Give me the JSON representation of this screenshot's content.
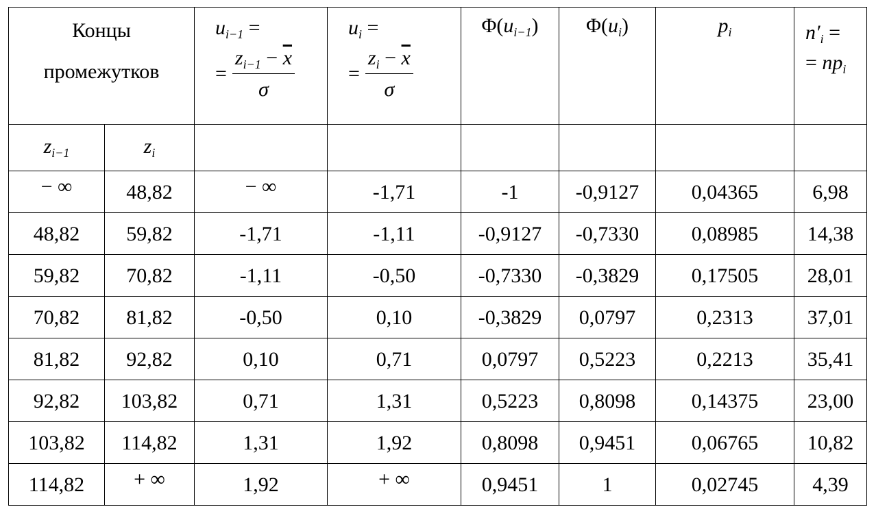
{
  "table": {
    "header": {
      "ends": "Концы промежутков",
      "u_prev": {
        "lhs": "u",
        "lhs_sub": "i−1",
        "eq": "=",
        "num": "z",
        "num_sub": "i−1",
        "op": "−",
        "xbar": "x",
        "den": "σ"
      },
      "u_cur": {
        "lhs": "u",
        "lhs_sub": "i",
        "eq": "=",
        "num": "z",
        "num_sub": "i",
        "op": "−",
        "xbar": "x",
        "den": "σ"
      },
      "phi_prev": {
        "open": "Φ(",
        "arg": "u",
        "sub": "i−1",
        "close": ")"
      },
      "phi_cur": {
        "open": "Φ(",
        "arg": "u",
        "sub": "i",
        "close": ")"
      },
      "p": {
        "sym": "p",
        "sub": "i"
      },
      "n": {
        "sym": "n′",
        "sub": "i",
        "eq": "=",
        "rhs": "np",
        "rhs_sub": "i"
      }
    },
    "subheader": [
      {
        "sym": "z",
        "sub": "i−1"
      },
      {
        "sym": "z",
        "sub": "i"
      }
    ],
    "rows": [
      [
        "− ∞",
        "48,82",
        "− ∞",
        "-1,71",
        "-1",
        "-0,9127",
        "0,04365",
        "6,98"
      ],
      [
        "48,82",
        "59,82",
        "-1,71",
        "-1,11",
        "-0,9127",
        "-0,7330",
        "0,08985",
        "14,38"
      ],
      [
        "59,82",
        "70,82",
        "-1,11",
        "-0,50",
        "-0,7330",
        "-0,3829",
        "0,17505",
        "28,01"
      ],
      [
        "70,82",
        "81,82",
        "-0,50",
        "0,10",
        "-0,3829",
        "0,0797",
        "0,2313",
        "37,01"
      ],
      [
        "81,82",
        "92,82",
        "0,10",
        "0,71",
        "0,0797",
        "0,5223",
        "0,2213",
        "35,41"
      ],
      [
        "92,82",
        "103,82",
        "0,71",
        "1,31",
        "0,5223",
        "0,8098",
        "0,14375",
        "23,00"
      ],
      [
        "103,82",
        "114,82",
        "1,31",
        "1,92",
        "0,8098",
        "0,9451",
        "0,06765",
        "10,82"
      ],
      [
        "114,82",
        "+ ∞",
        "1,92",
        "+ ∞",
        "0,9451",
        "1",
        "0,02745",
        "4,39"
      ]
    ]
  }
}
